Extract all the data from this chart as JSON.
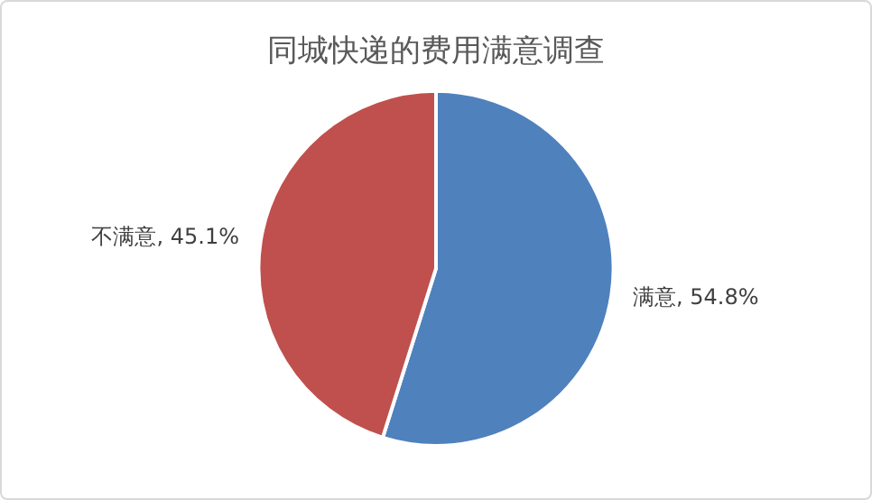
{
  "chart_data": {
    "type": "pie",
    "title": "同城快递的费用满意调查",
    "categories": [
      "满意",
      "不满意"
    ],
    "values": [
      54.8,
      45.1
    ],
    "value_labels": [
      "54.8%",
      "45.1%"
    ],
    "colors": [
      "#4f81bd",
      "#c0504d"
    ],
    "legend": false
  }
}
